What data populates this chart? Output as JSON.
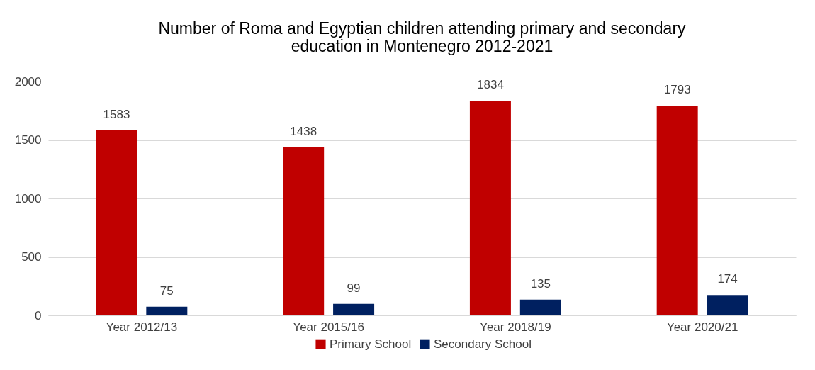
{
  "chart_data": {
    "type": "bar",
    "title": [
      "Number of Roma and Egyptian children attending primary and secondary",
      "education in Montenegro 2012-2021"
    ],
    "categories": [
      "Year 2012/13",
      "Year 2015/16",
      "Year 2018/19",
      "Year 2020/21"
    ],
    "series": [
      {
        "name": "Primary School",
        "color": "#c00000",
        "values": [
          1583,
          1438,
          1834,
          1793
        ]
      },
      {
        "name": "Secondary School",
        "color": "#002060",
        "values": [
          75,
          99,
          135,
          174
        ]
      }
    ],
    "ylim": [
      0,
      2000
    ],
    "yticks": [
      0,
      500,
      1000,
      1500,
      2000
    ],
    "grid": "y",
    "legend": "bottom",
    "data_labels": true
  }
}
